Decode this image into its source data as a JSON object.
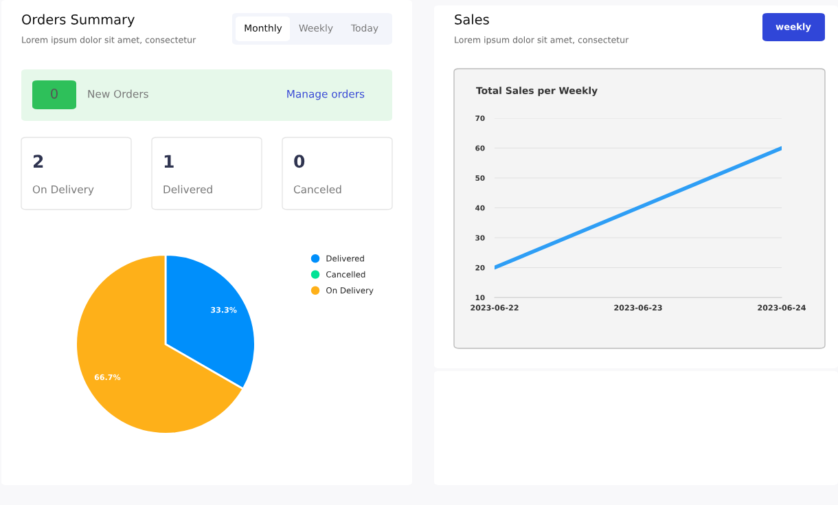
{
  "chart_data": [
    {
      "type": "other",
      "title": "Orders Summary",
      "subtitle": "Lorem ipsum dolor sit amet, consectetur",
      "annotations": [
        "Monthly",
        "Weekly",
        "Today",
        "0",
        "New Orders",
        "Manage orders",
        "2",
        "On Delivery",
        "1",
        "Delivered",
        "0",
        "Canceled"
      ]
    },
    {
      "type": "pie",
      "categories": [
        "Delivered",
        "Cancelled",
        "On Delivery"
      ],
      "values": [
        33.3,
        0,
        66.7
      ],
      "colors": [
        "#008ffb",
        "#00e396",
        "#feb019"
      ],
      "value_labels": [
        "33.3%",
        null,
        "66.7%"
      ],
      "legend": "right"
    },
    {
      "type": "other",
      "title": "Sales",
      "subtitle": "Lorem ipsum dolor sit amet, consectetur",
      "annotations": [
        "weekly"
      ]
    },
    {
      "type": "line",
      "title": "Total Sales per Weekly",
      "x": [
        "2023-06-22",
        "2023-06-23",
        "2023-06-24"
      ],
      "series": [
        {
          "color": "#2e9ef5",
          "values": [
            20,
            40,
            60
          ]
        }
      ],
      "xlim": [
        "2023-06-22",
        "2023-06-24"
      ],
      "xticks": [
        "2023-06-22",
        "2023-06-23",
        "2023-06-24"
      ],
      "ylim": [
        10,
        70
      ],
      "yticks": [
        10,
        20,
        30,
        40,
        50,
        60,
        70
      ],
      "grid": "y",
      "marker": "none",
      "line_style": "solid"
    }
  ]
}
